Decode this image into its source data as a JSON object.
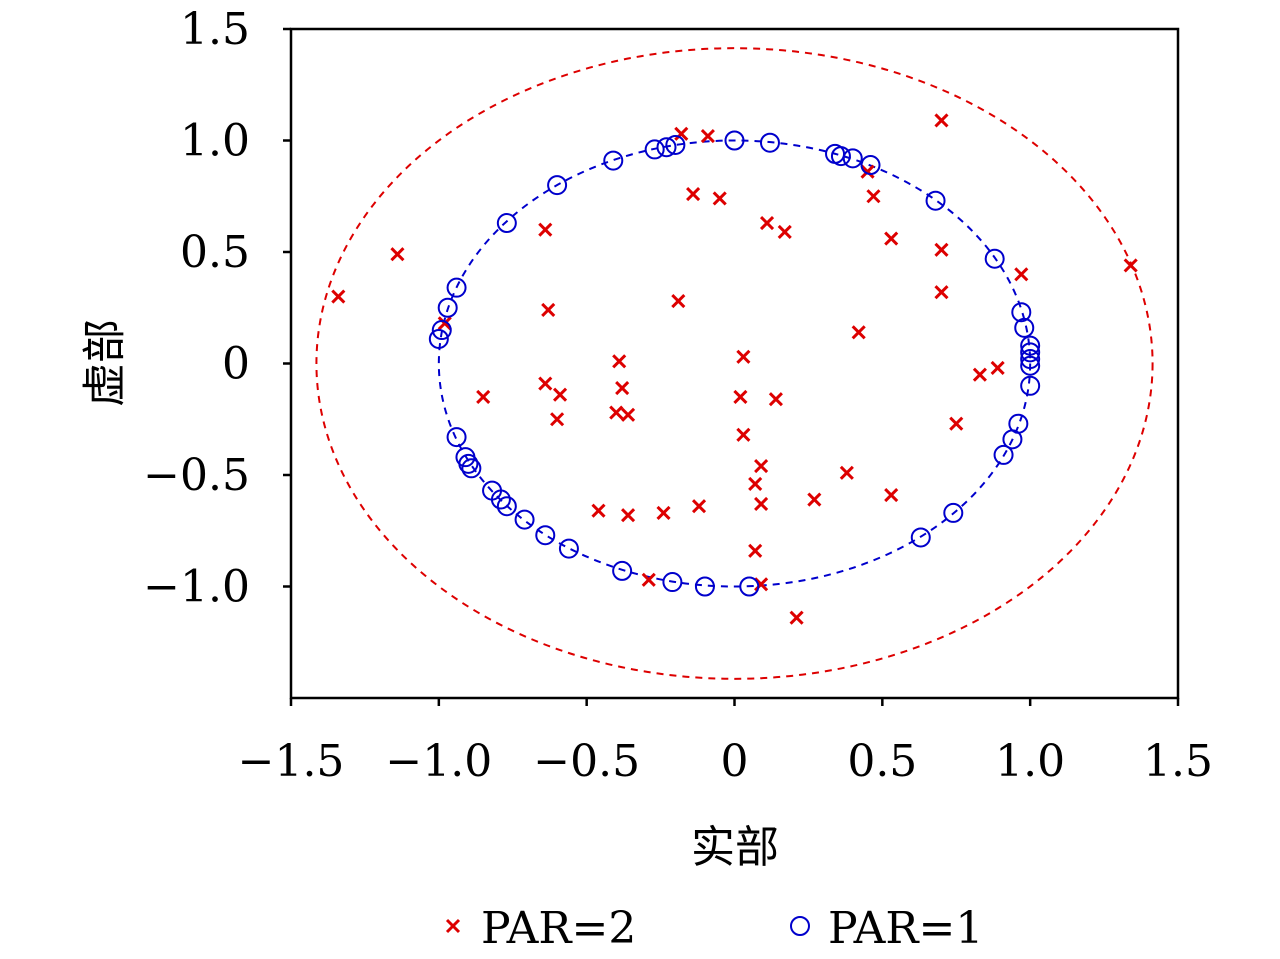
{
  "chart_data": {
    "type": "scatter",
    "title": "",
    "xlabel": "实部",
    "ylabel": "虚部",
    "xlim": [
      -1.5,
      1.5
    ],
    "ylim": [
      -1.5,
      1.5
    ],
    "x_ticks": [
      -1.5,
      -1.0,
      -0.5,
      0,
      0.5,
      1.0,
      1.5
    ],
    "x_tick_labels": [
      "−1.5",
      "−1.0",
      "−0.5",
      "0",
      "0.5",
      "1.0",
      "1.5"
    ],
    "y_ticks": [
      1.5,
      1.0,
      0.5,
      0,
      -0.5,
      -1.0
    ],
    "y_tick_labels": [
      "1.5",
      "1.0",
      "0.5",
      "0",
      "−0.5",
      "−1.0"
    ],
    "grid": false,
    "legend_position": "bottom",
    "reference_circles": [
      {
        "radius": 1.0,
        "style": "dashed",
        "color": "#0000cc"
      },
      {
        "radius": 1.414,
        "style": "dashed",
        "color": "#dd0000"
      }
    ],
    "series": [
      {
        "name": "PAR=2",
        "marker": "x",
        "color": "#dd0000",
        "points": [
          [
            -1.34,
            0.3
          ],
          [
            -1.14,
            0.49
          ],
          [
            -0.98,
            0.18
          ],
          [
            -0.85,
            -0.15
          ],
          [
            -0.64,
            0.6
          ],
          [
            -0.63,
            0.24
          ],
          [
            -0.64,
            -0.09
          ],
          [
            -0.59,
            -0.14
          ],
          [
            -0.6,
            -0.25
          ],
          [
            -0.46,
            -0.66
          ],
          [
            -0.39,
            0.01
          ],
          [
            -0.38,
            -0.11
          ],
          [
            -0.4,
            -0.22
          ],
          [
            -0.36,
            -0.23
          ],
          [
            -0.36,
            -0.68
          ],
          [
            -0.29,
            -0.97
          ],
          [
            -0.24,
            -0.67
          ],
          [
            -0.19,
            0.28
          ],
          [
            -0.18,
            1.03
          ],
          [
            -0.14,
            0.76
          ],
          [
            -0.12,
            -0.64
          ],
          [
            -0.09,
            1.02
          ],
          [
            -0.05,
            0.74
          ],
          [
            0.02,
            -0.15
          ],
          [
            0.03,
            0.03
          ],
          [
            0.03,
            -0.32
          ],
          [
            0.07,
            -0.54
          ],
          [
            0.07,
            -0.84
          ],
          [
            0.09,
            -0.46
          ],
          [
            0.09,
            -0.63
          ],
          [
            0.09,
            -0.99
          ],
          [
            0.11,
            0.63
          ],
          [
            0.14,
            -0.16
          ],
          [
            0.17,
            0.59
          ],
          [
            0.21,
            -1.14
          ],
          [
            0.27,
            -0.61
          ],
          [
            0.38,
            -0.49
          ],
          [
            0.42,
            0.14
          ],
          [
            0.45,
            0.86
          ],
          [
            0.47,
            0.75
          ],
          [
            0.53,
            0.56
          ],
          [
            0.53,
            -0.59
          ],
          [
            0.7,
            1.09
          ],
          [
            0.7,
            0.51
          ],
          [
            0.7,
            0.32
          ],
          [
            0.75,
            -0.27
          ],
          [
            0.83,
            -0.05
          ],
          [
            0.89,
            -0.02
          ],
          [
            0.97,
            0.4
          ],
          [
            1.34,
            0.44
          ]
        ]
      },
      {
        "name": "PAR=1",
        "marker": "o",
        "color": "#0000cc",
        "points": [
          [
            -1.0,
            0.11
          ],
          [
            -0.99,
            0.15
          ],
          [
            -0.97,
            0.25
          ],
          [
            -0.94,
            0.34
          ],
          [
            -0.94,
            -0.33
          ],
          [
            -0.91,
            -0.42
          ],
          [
            -0.9,
            -0.45
          ],
          [
            -0.89,
            -0.47
          ],
          [
            -0.82,
            -0.57
          ],
          [
            -0.79,
            -0.61
          ],
          [
            -0.77,
            -0.64
          ],
          [
            -0.77,
            0.63
          ],
          [
            -0.71,
            -0.7
          ],
          [
            -0.64,
            -0.77
          ],
          [
            -0.6,
            0.8
          ],
          [
            -0.56,
            -0.83
          ],
          [
            -0.41,
            0.91
          ],
          [
            -0.38,
            -0.93
          ],
          [
            -0.27,
            0.96
          ],
          [
            -0.23,
            0.97
          ],
          [
            -0.21,
            -0.98
          ],
          [
            -0.2,
            0.98
          ],
          [
            -0.1,
            -1.0
          ],
          [
            0.0,
            1.0
          ],
          [
            0.05,
            -1.0
          ],
          [
            0.12,
            0.99
          ],
          [
            0.34,
            0.94
          ],
          [
            0.36,
            0.93
          ],
          [
            0.4,
            0.92
          ],
          [
            0.46,
            0.89
          ],
          [
            0.63,
            -0.78
          ],
          [
            0.68,
            0.73
          ],
          [
            0.74,
            -0.67
          ],
          [
            0.88,
            0.47
          ],
          [
            0.91,
            -0.41
          ],
          [
            0.94,
            -0.34
          ],
          [
            0.96,
            -0.27
          ],
          [
            0.97,
            0.23
          ],
          [
            0.98,
            0.16
          ],
          [
            1.0,
            0.08
          ],
          [
            1.0,
            0.05
          ],
          [
            1.0,
            0.02
          ],
          [
            1.0,
            -0.01
          ],
          [
            1.0,
            -0.1
          ]
        ]
      }
    ]
  }
}
